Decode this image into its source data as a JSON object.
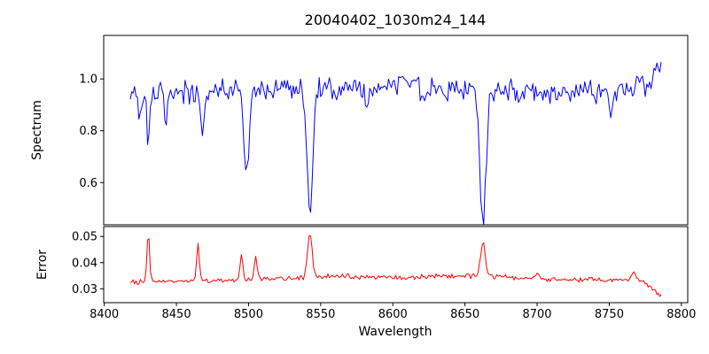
{
  "figure": {
    "background": "#ffffff"
  },
  "chart_data": [
    {
      "type": "line",
      "title": "20040402_1030m24_144",
      "ylabel": "Spectrum",
      "color": "#0000ff",
      "legend": "none",
      "grid": false,
      "xlim": [
        8399.6,
        8804.4
      ],
      "ylim": [
        0.437,
        1.168
      ],
      "yticks": [
        0.6,
        0.8,
        1.0
      ],
      "ytick_labels": [
        "0.6",
        "0.8",
        "1.0"
      ],
      "description": "Noisy stellar spectrum, continuum near 1.0, deep narrow absorption lines near 8498, 8542 and 8662 (Ca II triplet), smaller dips near 8430, 8443, 8468, 8688, 8751; rises toward ~1.05 at right edge",
      "series": {
        "x_start": 8418,
        "x_end": 8786,
        "x_step": 1,
        "seed": 20040402,
        "noise_amp": 0.055,
        "baseline": [
          [
            8418,
            0.94
          ],
          [
            8445,
            0.96
          ],
          [
            8475,
            0.95
          ],
          [
            8505,
            0.965
          ],
          [
            8540,
            0.97
          ],
          [
            8575,
            0.965
          ],
          [
            8605,
            0.975
          ],
          [
            8640,
            0.965
          ],
          [
            8670,
            0.955
          ],
          [
            8700,
            0.95
          ],
          [
            8730,
            0.945
          ],
          [
            8755,
            0.94
          ],
          [
            8775,
            0.975
          ],
          [
            8786,
            1.05
          ]
        ],
        "features": [
          {
            "center": 8424.0,
            "amp": -0.08,
            "sigma": 1.0
          },
          {
            "center": 8430.5,
            "amp": -0.19,
            "sigma": 1.2
          },
          {
            "center": 8443.0,
            "amp": -0.13,
            "sigma": 1.1
          },
          {
            "center": 8468.0,
            "amp": -0.15,
            "sigma": 1.2
          },
          {
            "center": 8498.5,
            "amp": -0.34,
            "sigma": 1.7
          },
          {
            "center": 8542.5,
            "amp": -0.48,
            "sigma": 2.1
          },
          {
            "center": 8582.0,
            "amp": -0.07,
            "sigma": 1.2
          },
          {
            "center": 8621.0,
            "amp": -0.06,
            "sigma": 1.0
          },
          {
            "center": 8662.5,
            "amp": -0.51,
            "sigma": 2.1
          },
          {
            "center": 8688.0,
            "amp": -0.07,
            "sigma": 1.0
          },
          {
            "center": 8751.0,
            "amp": -0.07,
            "sigma": 1.0
          }
        ]
      }
    },
    {
      "type": "line",
      "xlabel": "Wavelength",
      "ylabel": "Error",
      "color": "#ff0000",
      "legend": "none",
      "grid": false,
      "xlim": [
        8399.6,
        8804.4
      ],
      "ylim": [
        0.0247,
        0.0538
      ],
      "yticks": [
        0.03,
        0.04,
        0.05
      ],
      "ytick_labels": [
        "0.03",
        "0.04",
        "0.05"
      ],
      "xticks": [
        8400,
        8450,
        8500,
        8550,
        8600,
        8650,
        8700,
        8750,
        8800
      ],
      "xtick_labels": [
        "8400",
        "8450",
        "8500",
        "8550",
        "8600",
        "8650",
        "8700",
        "8750",
        "8800"
      ],
      "description": "Error spectrum around 0.033-0.035 with spikes to ~0.052 at 8430, ~0.047 at 8465, ~0.051 at 8542, ~0.048 at 8662; drops to ~0.027 at right edge",
      "series": {
        "x_start": 8418,
        "x_end": 8786,
        "x_step": 1,
        "seed": 1030,
        "noise_amp": 0.0012,
        "baseline": [
          [
            8418,
            0.0325
          ],
          [
            8440,
            0.0328
          ],
          [
            8470,
            0.033
          ],
          [
            8500,
            0.0335
          ],
          [
            8540,
            0.0342
          ],
          [
            8565,
            0.0348
          ],
          [
            8590,
            0.0344
          ],
          [
            8615,
            0.0344
          ],
          [
            8640,
            0.0348
          ],
          [
            8662,
            0.035
          ],
          [
            8685,
            0.034
          ],
          [
            8710,
            0.0336
          ],
          [
            8735,
            0.0334
          ],
          [
            8758,
            0.0332
          ],
          [
            8772,
            0.033
          ],
          [
            8780,
            0.03
          ],
          [
            8786,
            0.0275
          ]
        ],
        "features": [
          {
            "center": 8430.5,
            "amp": 0.019,
            "sigma": 0.9
          },
          {
            "center": 8465.0,
            "amp": 0.014,
            "sigma": 0.9
          },
          {
            "center": 8495.0,
            "amp": 0.0095,
            "sigma": 1.0
          },
          {
            "center": 8505.0,
            "amp": 0.0085,
            "sigma": 1.0
          },
          {
            "center": 8542.5,
            "amp": 0.0165,
            "sigma": 1.6
          },
          {
            "center": 8662.5,
            "amp": 0.0135,
            "sigma": 1.6
          },
          {
            "center": 8700.0,
            "amp": 0.002,
            "sigma": 1.2
          },
          {
            "center": 8767.0,
            "amp": 0.0035,
            "sigma": 1.2
          }
        ]
      }
    }
  ]
}
